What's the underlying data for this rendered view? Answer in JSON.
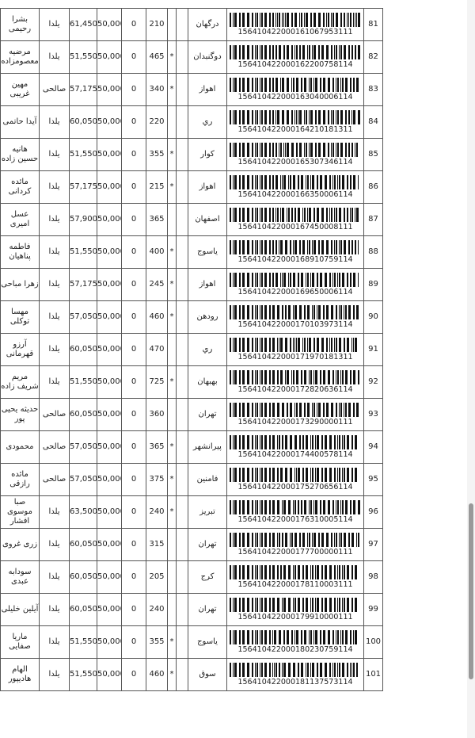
{
  "rows": [
    {
      "no": "81",
      "barcode": "156410422000161067953111",
      "city": "درگهان",
      "star": "",
      "weight": "210",
      "zero": "0",
      "base": "50,000",
      "total": "61,450",
      "type": "یلدا",
      "name": "بشرا رحیمی"
    },
    {
      "no": "82",
      "barcode": "156410422000162200758114",
      "city": "دوگنبدان",
      "star": "*",
      "weight": "465",
      "zero": "0",
      "base": "50,000",
      "total": "51,550",
      "type": "یلدا",
      "name": "مرضیه معصومزاده"
    },
    {
      "no": "83",
      "barcode": "156410422000163040006114",
      "city": "اهواز",
      "star": "*",
      "weight": "340",
      "zero": "0",
      "base": "50,000",
      "total": "57,175",
      "type": "صالحی",
      "name": "مهین غریبی"
    },
    {
      "no": "84",
      "barcode": "156410422000164210181311",
      "city": "ري",
      "star": "",
      "weight": "220",
      "zero": "0",
      "base": "50,000",
      "total": "60,050",
      "type": "یلدا",
      "name": "آیدا حاتمی"
    },
    {
      "no": "85",
      "barcode": "156410422000165307346114",
      "city": "کوار",
      "star": "*",
      "weight": "355",
      "zero": "0",
      "base": "50,000",
      "total": "51,550",
      "type": "یلدا",
      "name": "هانیه حسین زاده"
    },
    {
      "no": "86",
      "barcode": "156410422000166350006114",
      "city": "اهواز",
      "star": "*",
      "weight": "215",
      "zero": "0",
      "base": "50,000",
      "total": "57,175",
      "type": "یلدا",
      "name": "مائده کردانی"
    },
    {
      "no": "87",
      "barcode": "156410422000167450008111",
      "city": "اصفهان",
      "star": "",
      "weight": "365",
      "zero": "0",
      "base": "50,000",
      "total": "57,900",
      "type": "یلدا",
      "name": "عسل امیری"
    },
    {
      "no": "88",
      "barcode": "156410422000168910759114",
      "city": "یاسوج",
      "star": "*",
      "weight": "400",
      "zero": "0",
      "base": "50,000",
      "total": "51,550",
      "type": "یلدا",
      "name": "فاطمه پناهیان"
    },
    {
      "no": "89",
      "barcode": "156410422000169650006114",
      "city": "اهواز",
      "star": "*",
      "weight": "245",
      "zero": "0",
      "base": "50,000",
      "total": "57,175",
      "type": "یلدا",
      "name": "زهرا مباحی"
    },
    {
      "no": "90",
      "barcode": "156410422000170103973114",
      "city": "رودهن",
      "star": "*",
      "weight": "460",
      "zero": "0",
      "base": "50,000",
      "total": "57,050",
      "type": "یلدا",
      "name": "مهسا توکلی"
    },
    {
      "no": "91",
      "barcode": "156410422000171970181311",
      "city": "ري",
      "star": "",
      "weight": "470",
      "zero": "0",
      "base": "50,000",
      "total": "60,050",
      "type": "یلدا",
      "name": "آرزو قهرمانی"
    },
    {
      "no": "92",
      "barcode": "156410422000172820636114",
      "city": "بهبهان",
      "star": "*",
      "weight": "725",
      "zero": "0",
      "base": "50,000",
      "total": "51,550",
      "type": "یلدا",
      "name": "مریم شریف زاده"
    },
    {
      "no": "93",
      "barcode": "156410422000173290000111",
      "city": "تهران",
      "star": "",
      "weight": "360",
      "zero": "0",
      "base": "50,000",
      "total": "60,050",
      "type": "صالحی",
      "name": "حدیثه یحیی پور"
    },
    {
      "no": "94",
      "barcode": "156410422000174400578114",
      "city": "پیرانشهر",
      "star": "*",
      "weight": "365",
      "zero": "0",
      "base": "50,000",
      "total": "57,050",
      "type": "صالحی",
      "name": "محمودی"
    },
    {
      "no": "95",
      "barcode": "156410422000175270656114",
      "city": "فامنین",
      "star": "*",
      "weight": "375",
      "zero": "0",
      "base": "50,000",
      "total": "57,050",
      "type": "صالحی",
      "name": "مائده رازقی"
    },
    {
      "no": "96",
      "barcode": "156410422000176310005114",
      "city": "تبریز",
      "star": "*",
      "weight": "240",
      "zero": "0",
      "base": "50,000",
      "total": "63,500",
      "type": "یلدا",
      "name": "صبا موسوی افشار"
    },
    {
      "no": "97",
      "barcode": "156410422000177700000111",
      "city": "تهران",
      "star": "",
      "weight": "315",
      "zero": "0",
      "base": "50,000",
      "total": "60,050",
      "type": "یلدا",
      "name": "زری غروی"
    },
    {
      "no": "98",
      "barcode": "156410422000178110003111",
      "city": "کرج",
      "star": "",
      "weight": "205",
      "zero": "0",
      "base": "50,000",
      "total": "60,050",
      "type": "یلدا",
      "name": "سودابه عبدی"
    },
    {
      "no": "99",
      "barcode": "156410422000179910000111",
      "city": "تهران",
      "star": "",
      "weight": "240",
      "zero": "0",
      "base": "50,000",
      "total": "60,050",
      "type": "یلدا",
      "name": "آیلین خلیلی"
    },
    {
      "no": "100",
      "barcode": "156410422000180230759114",
      "city": "یاسوج",
      "star": "*",
      "weight": "355",
      "zero": "0",
      "base": "50,000",
      "total": "51,550",
      "type": "یلدا",
      "name": "ماریا صفایی"
    },
    {
      "no": "101",
      "barcode": "156410422000181137573114",
      "city": "سوق",
      "star": "*",
      "weight": "460",
      "zero": "0",
      "base": "50,000",
      "total": "51,550",
      "type": "یلدا",
      "name": "الهام هادیپور"
    }
  ]
}
